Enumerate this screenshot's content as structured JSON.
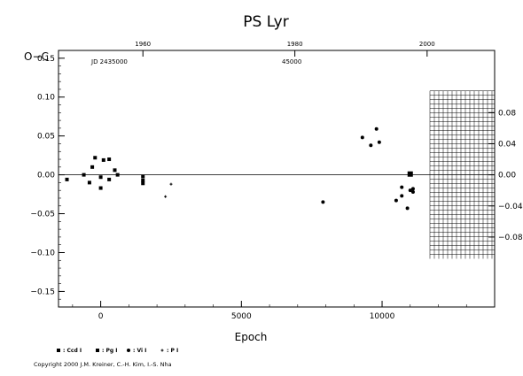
{
  "chart_data": {
    "type": "scatter",
    "title": "PS  Lyr",
    "xlabel": "Epoch",
    "ylabel": "O−C",
    "xlim": [
      -1500,
      14000
    ],
    "ylim": [
      -0.17,
      0.16
    ],
    "x_ticks": [
      0,
      5000,
      10000
    ],
    "y_ticks": [
      -0.15,
      -0.1,
      -0.05,
      0.0,
      0.05,
      0.1,
      0.15
    ],
    "y_tick_labels": [
      "−0.15",
      "−0.10",
      "−0.05",
      "0.00",
      "0.05",
      "0.10",
      "0.15"
    ],
    "top_axis": {
      "year_ticks": [
        {
          "epoch": 1500,
          "label": "1960"
        },
        {
          "epoch": 6900,
          "label": "1980"
        },
        {
          "epoch": 11600,
          "label": "2000"
        }
      ],
      "jd_label": "JD 2435000",
      "jd_mid_label": "45000"
    },
    "right_axis": {
      "ticks": [
        {
          "y": 0.08,
          "label": "0.08"
        },
        {
          "y": 0.04,
          "label": "0.04"
        },
        {
          "y": 0.0,
          "label": "0.00"
        },
        {
          "y": -0.04,
          "label": "−0.04"
        },
        {
          "y": -0.08,
          "label": "−0.08"
        }
      ]
    },
    "hatched_region": {
      "x_from": 11700,
      "x_to": 14000,
      "y_from": -0.108,
      "y_to": 0.108
    },
    "series": [
      {
        "name": ": Ccd I",
        "marker": "square-large",
        "points": [
          [
            11000,
            0.001
          ]
        ]
      },
      {
        "name": ": Pg I",
        "marker": "square",
        "points": [
          [
            -1200,
            -0.006
          ],
          [
            -600,
            0.0
          ],
          [
            -400,
            -0.01
          ],
          [
            -300,
            0.01
          ],
          [
            -200,
            0.022
          ],
          [
            0,
            -0.003
          ],
          [
            0,
            -0.017
          ],
          [
            100,
            0.019
          ],
          [
            300,
            0.02
          ],
          [
            300,
            -0.006
          ],
          [
            500,
            0.006
          ],
          [
            600,
            0.0
          ],
          [
            1500,
            -0.002
          ],
          [
            1500,
            -0.007
          ],
          [
            1500,
            -0.011
          ]
        ]
      },
      {
        "name": ": Vi I",
        "marker": "dot",
        "points": [
          [
            7900,
            -0.035
          ],
          [
            9300,
            0.048
          ],
          [
            9600,
            0.038
          ],
          [
            9800,
            0.059
          ],
          [
            9900,
            0.042
          ],
          [
            10500,
            -0.033
          ],
          [
            10700,
            -0.027
          ],
          [
            10700,
            -0.016
          ],
          [
            10900,
            -0.043
          ],
          [
            11000,
            -0.02
          ],
          [
            11100,
            -0.018
          ],
          [
            11100,
            -0.022
          ]
        ]
      },
      {
        "name": ": P I",
        "marker": "plus",
        "points": [
          [
            2300,
            -0.028
          ],
          [
            2500,
            -0.012
          ]
        ]
      }
    ]
  },
  "copyright": "Copyright 2000 J.M. Kreiner, C.-H. Kim, I.-S. Nha"
}
